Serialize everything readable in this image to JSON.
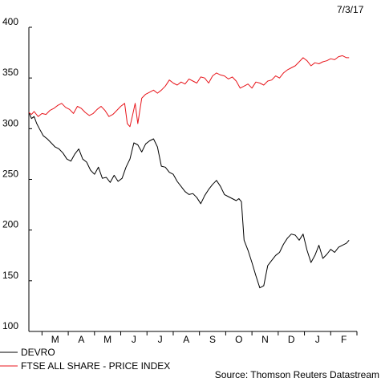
{
  "date_label": "7/3/17",
  "source": "Source: Thomson Reuters Datastream",
  "chart_data": {
    "type": "line",
    "title": "",
    "xlabel": "",
    "ylabel": "",
    "ylim": [
      100,
      400
    ],
    "yticks": [
      100,
      150,
      200,
      250,
      300,
      350,
      400
    ],
    "xlim": [
      0,
      12.5
    ],
    "month_labels": [
      "M",
      "A",
      "M",
      "J",
      "J",
      "A",
      "S",
      "O",
      "N",
      "D",
      "J",
      "F"
    ],
    "grid": false,
    "legend_position": "bottom-left",
    "series": [
      {
        "name": "DEVRO",
        "color": "#000000",
        "x": [
          0,
          0.1,
          0.2,
          0.3,
          0.4,
          0.55,
          0.7,
          0.85,
          1.0,
          1.15,
          1.3,
          1.45,
          1.6,
          1.75,
          1.9,
          2.05,
          2.2,
          2.35,
          2.5,
          2.65,
          2.8,
          2.95,
          3.1,
          3.25,
          3.4,
          3.55,
          3.7,
          3.85,
          4.0,
          4.15,
          4.3,
          4.45,
          4.6,
          4.75,
          4.9,
          5.05,
          5.2,
          5.35,
          5.5,
          5.65,
          5.8,
          5.95,
          6.1,
          6.25,
          6.4,
          6.55,
          6.7,
          6.85,
          7.0,
          7.15,
          7.3,
          7.45,
          7.6,
          7.75,
          7.9,
          8.0,
          8.1,
          8.2,
          8.35,
          8.5,
          8.65,
          8.8,
          8.95,
          9.1,
          9.25,
          9.4,
          9.55,
          9.7,
          9.85,
          10.0,
          10.15,
          10.3,
          10.45,
          10.6,
          10.75,
          10.9,
          11.05,
          11.2,
          11.35,
          11.5,
          11.65,
          11.8,
          11.95,
          12.1,
          12.2
        ],
        "values": [
          316,
          310,
          312,
          305,
          300,
          293,
          290,
          286,
          282,
          280,
          276,
          270,
          268,
          275,
          280,
          270,
          267,
          259,
          255,
          262,
          251,
          252,
          247,
          254,
          248,
          251,
          262,
          270,
          286,
          284,
          277,
          285,
          288,
          290,
          282,
          263,
          262,
          257,
          255,
          248,
          243,
          238,
          235,
          236,
          232,
          226,
          234,
          240,
          245,
          249,
          243,
          235,
          233,
          231,
          229,
          231,
          228,
          190,
          180,
          168,
          155,
          143,
          145,
          165,
          170,
          175,
          178,
          186,
          192,
          196,
          195,
          190,
          196,
          180,
          168,
          175,
          185,
          172,
          176,
          181,
          178,
          183,
          185,
          187,
          190
        ]
      },
      {
        "name": "FTSE ALL SHARE - PRICE INDEX",
        "color": "#e8161c",
        "x": [
          0,
          0.1,
          0.2,
          0.35,
          0.5,
          0.65,
          0.8,
          0.95,
          1.1,
          1.25,
          1.4,
          1.55,
          1.7,
          1.85,
          2.0,
          2.15,
          2.3,
          2.45,
          2.6,
          2.75,
          2.9,
          3.05,
          3.2,
          3.35,
          3.5,
          3.65,
          3.75,
          3.85,
          3.95,
          4.05,
          4.15,
          4.3,
          4.45,
          4.6,
          4.75,
          4.9,
          5.05,
          5.2,
          5.35,
          5.5,
          5.65,
          5.8,
          5.95,
          6.1,
          6.25,
          6.4,
          6.55,
          6.7,
          6.85,
          7.0,
          7.15,
          7.3,
          7.45,
          7.6,
          7.75,
          7.9,
          8.05,
          8.2,
          8.35,
          8.5,
          8.65,
          8.8,
          8.95,
          9.1,
          9.25,
          9.4,
          9.55,
          9.7,
          9.85,
          10.0,
          10.15,
          10.3,
          10.45,
          10.6,
          10.75,
          10.9,
          11.05,
          11.2,
          11.35,
          11.5,
          11.65,
          11.8,
          11.95,
          12.1,
          12.2
        ],
        "values": [
          316,
          314,
          317,
          312,
          315,
          314,
          318,
          320,
          323,
          325,
          321,
          319,
          315,
          322,
          320,
          316,
          313,
          315,
          319,
          322,
          318,
          312,
          314,
          318,
          322,
          325,
          305,
          302,
          313,
          325,
          305,
          330,
          334,
          336,
          338,
          335,
          338,
          342,
          348,
          345,
          343,
          346,
          344,
          349,
          347,
          345,
          351,
          350,
          345,
          352,
          355,
          353,
          352,
          349,
          351,
          347,
          340,
          342,
          344,
          340,
          346,
          345,
          343,
          347,
          348,
          352,
          350,
          355,
          358,
          360,
          362,
          366,
          370,
          367,
          362,
          365,
          364,
          366,
          367,
          369,
          368,
          371,
          372,
          370,
          370
        ]
      }
    ]
  }
}
